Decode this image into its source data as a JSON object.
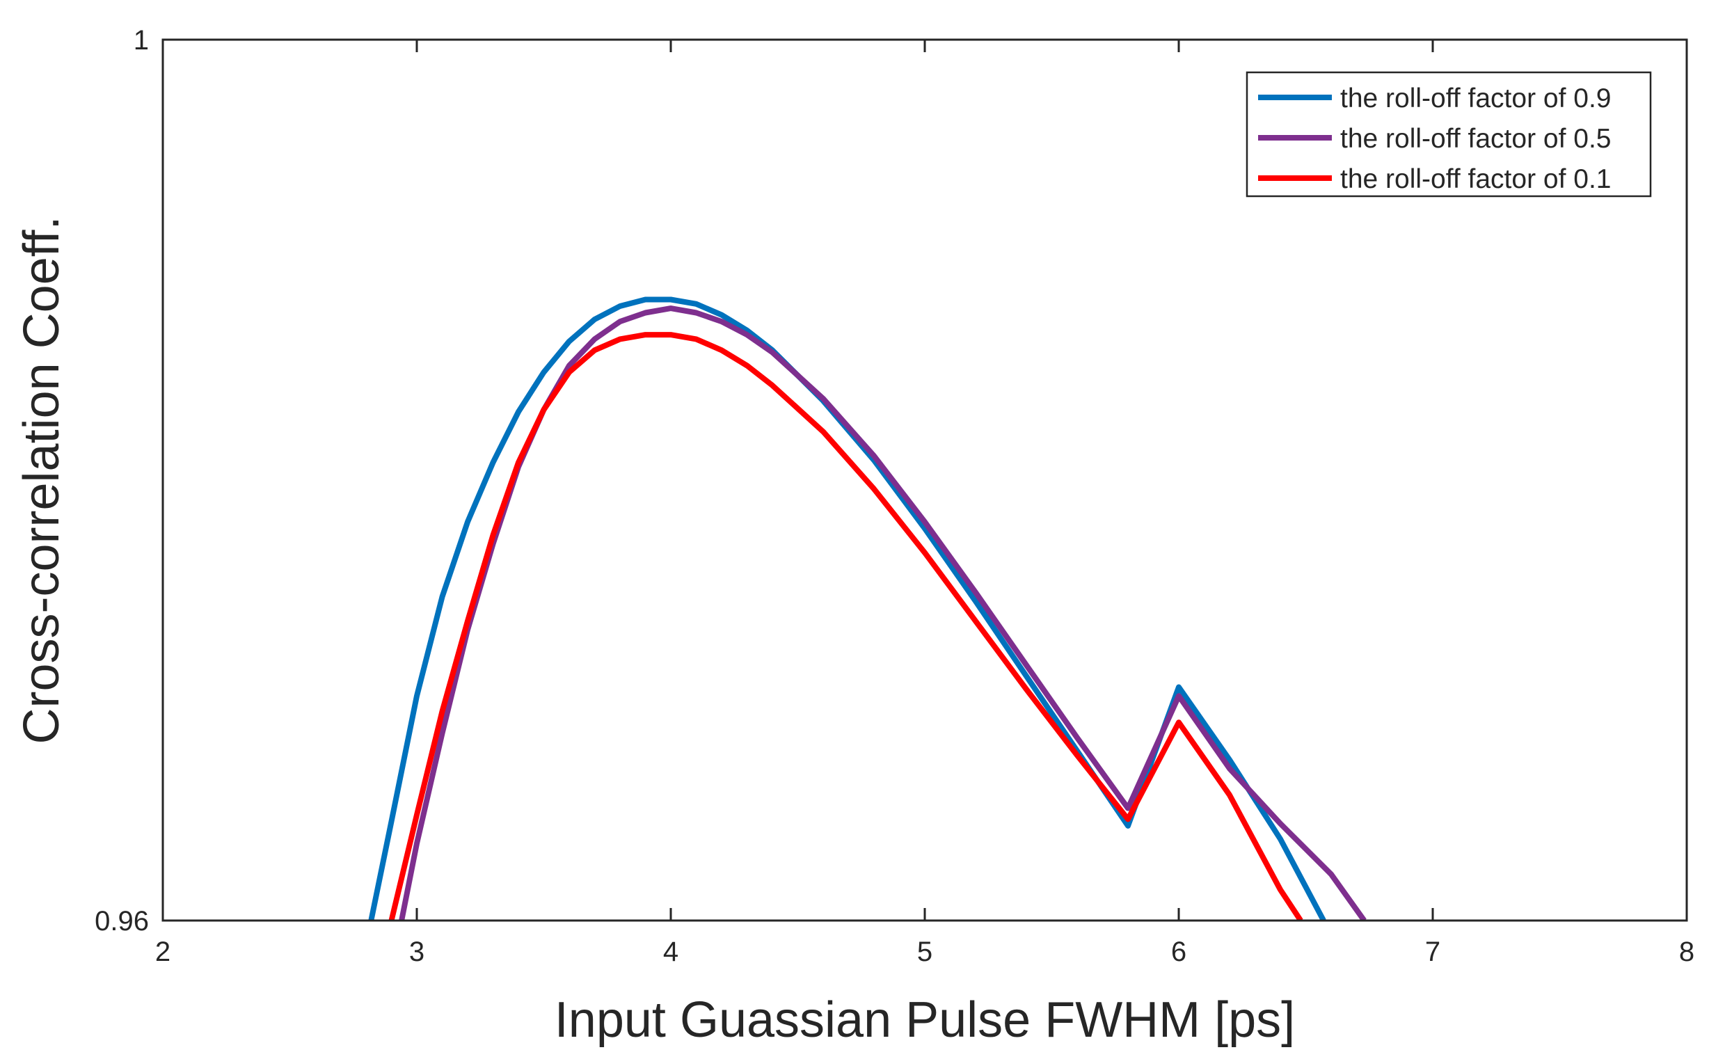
{
  "chart_data": {
    "type": "line",
    "title": "",
    "xlabel": "Input Guassian Pulse FWHM [ps]",
    "ylabel": "Cross-correlation Coeff.",
    "xlim": [
      2,
      8
    ],
    "ylim": [
      0.96,
      1
    ],
    "xticks": [
      "2",
      "3",
      "4",
      "5",
      "6",
      "7",
      "8"
    ],
    "yticks": [
      "0.96",
      "1"
    ],
    "grid": false,
    "legend_position": "top-right",
    "series": [
      {
        "name": "the roll-off factor of 0.9",
        "color": "#0072BD",
        "x": [
          2.82,
          2.9,
          3.0,
          3.1,
          3.2,
          3.3,
          3.4,
          3.5,
          3.6,
          3.7,
          3.8,
          3.9,
          4.0,
          4.1,
          4.2,
          4.3,
          4.4,
          4.6,
          4.8,
          5.0,
          5.2,
          5.4,
          5.6,
          5.8,
          6.0,
          6.2,
          6.4,
          6.57
        ],
        "y": [
          0.96,
          0.9645,
          0.9702,
          0.9747,
          0.9781,
          0.9808,
          0.9831,
          0.9849,
          0.9863,
          0.9873,
          0.9879,
          0.9882,
          0.9882,
          0.988,
          0.9875,
          0.9868,
          0.9859,
          0.9836,
          0.9809,
          0.9778,
          0.9745,
          0.9711,
          0.9677,
          0.9643,
          0.9706,
          0.9673,
          0.9637,
          0.96
        ]
      },
      {
        "name": "the roll-off factor of 0.5",
        "color": "#7E2F8E",
        "x": [
          2.94,
          3.0,
          3.1,
          3.2,
          3.3,
          3.4,
          3.5,
          3.6,
          3.7,
          3.8,
          3.9,
          4.0,
          4.1,
          4.2,
          4.3,
          4.4,
          4.6,
          4.8,
          5.0,
          5.2,
          5.4,
          5.6,
          5.8,
          6.0,
          6.2,
          6.4,
          6.6,
          6.73
        ],
        "y": [
          0.96,
          0.9635,
          0.9685,
          0.9732,
          0.9771,
          0.9806,
          0.9832,
          0.9852,
          0.9864,
          0.9872,
          0.9876,
          0.9878,
          0.9876,
          0.9872,
          0.9866,
          0.9858,
          0.9837,
          0.9811,
          0.9781,
          0.9749,
          0.9716,
          0.9683,
          0.9651,
          0.9702,
          0.9669,
          0.9644,
          0.9621,
          0.96
        ]
      },
      {
        "name": "the roll-off factor of 0.1",
        "color": "#FF0000",
        "x": [
          2.9,
          3.0,
          3.1,
          3.2,
          3.3,
          3.4,
          3.5,
          3.6,
          3.7,
          3.8,
          3.9,
          4.0,
          4.1,
          4.2,
          4.3,
          4.4,
          4.6,
          4.8,
          5.0,
          5.2,
          5.4,
          5.6,
          5.8,
          6.0,
          6.2,
          6.4,
          6.48
        ],
        "y": [
          0.96,
          0.9648,
          0.9695,
          0.9736,
          0.9775,
          0.9808,
          0.9832,
          0.9849,
          0.9859,
          0.9864,
          0.9866,
          0.9866,
          0.9864,
          0.9859,
          0.9852,
          0.9843,
          0.9822,
          0.9796,
          0.9767,
          0.9736,
          0.9705,
          0.9675,
          0.9646,
          0.969,
          0.9657,
          0.9614,
          0.96
        ]
      }
    ]
  }
}
